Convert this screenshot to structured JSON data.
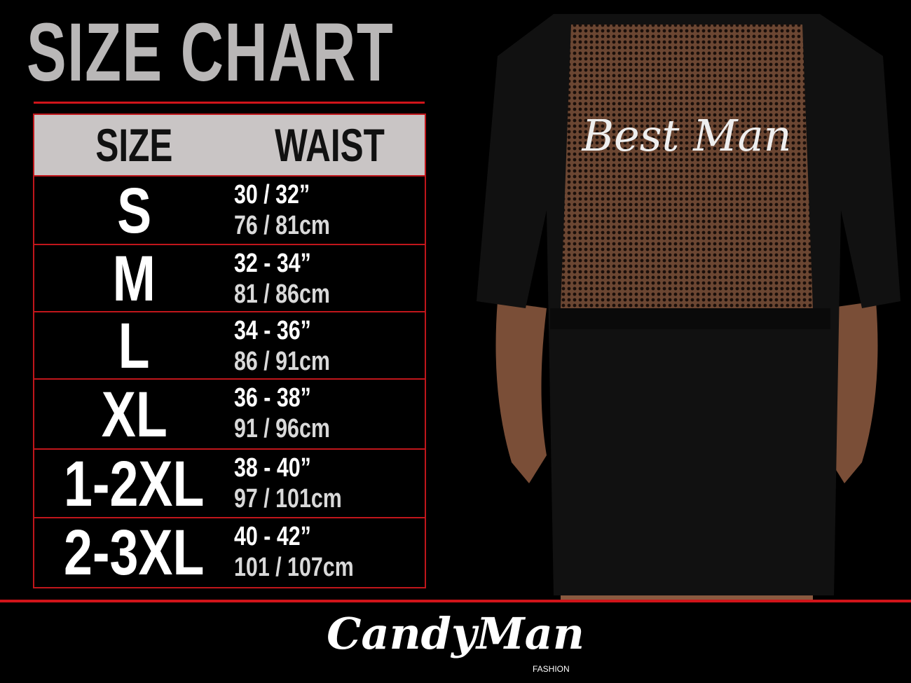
{
  "title": "SIZE CHART",
  "table": {
    "headers": [
      "SIZE",
      "WAIST"
    ],
    "rows": [
      {
        "size": "S",
        "inches": "30 / 32”",
        "cm": "76 / 81cm"
      },
      {
        "size": "M",
        "inches": "32 - 34”",
        "cm": "81 / 86cm"
      },
      {
        "size": "L",
        "inches": "34 - 36”",
        "cm": "86 / 91cm"
      },
      {
        "size": "XL",
        "inches": "36 - 38”",
        "cm": "91 / 96cm"
      },
      {
        "size": "1-2XL",
        "inches": "38 - 40”",
        "cm": "97 / 101cm"
      },
      {
        "size": "2-3XL",
        "inches": "40 - 42”",
        "cm": "101 / 107cm"
      }
    ]
  },
  "product": {
    "garment_print": "Best Man"
  },
  "brand": {
    "name": "CandyMan",
    "sub": "FASHION"
  },
  "colors": {
    "accent": "#d0141a",
    "header_bg": "#c9c5c5",
    "title": "#b9b7b7"
  }
}
